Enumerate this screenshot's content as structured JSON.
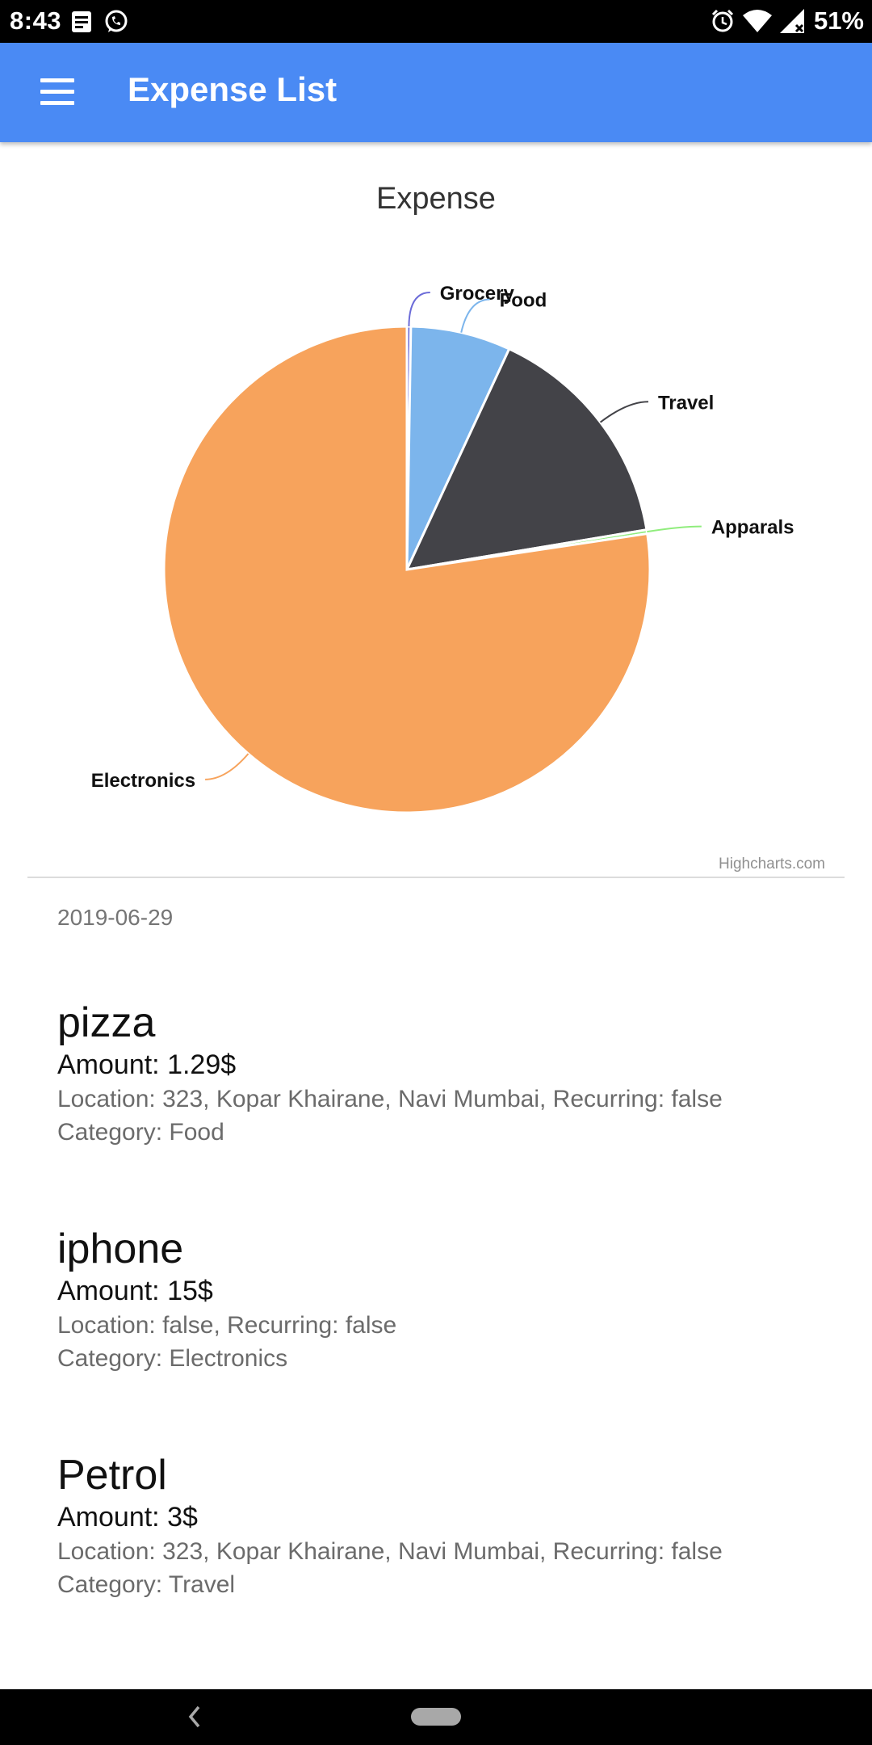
{
  "status_bar": {
    "time": "8:43",
    "battery": "51%",
    "icons": [
      "notes-icon",
      "whatsapp-icon",
      "alarm-icon",
      "wifi-icon",
      "signal-icon"
    ]
  },
  "app_bar": {
    "title": "Expense List",
    "menu_icon": "hamburger-menu-icon",
    "color": "#4a8af4"
  },
  "chart_data": {
    "type": "pie",
    "title": "Expense",
    "credits": "Highcharts.com",
    "series": [
      {
        "name": "Grocery",
        "value": 0.05,
        "color": "#6b6bd8"
      },
      {
        "name": "Food",
        "value": 1.29,
        "color": "#7cb5ec"
      },
      {
        "name": "Travel",
        "value": 3,
        "color": "#434348"
      },
      {
        "name": "Apparals",
        "value": 0.05,
        "color": "#90ed7d"
      },
      {
        "name": "Electronics",
        "value": 15,
        "color": "#f7a35c"
      }
    ]
  },
  "list": {
    "date": "2019-06-29",
    "items": [
      {
        "name": "pizza",
        "amount": "Amount: 1.29$",
        "location": "Location: 323, Kopar Khairane, Navi Mumbai, Recurring: false",
        "category": "Category: Food"
      },
      {
        "name": "iphone",
        "amount": "Amount: 15$",
        "location": "Location: false, Recurring: false",
        "category": "Category: Electronics"
      },
      {
        "name": "Petrol",
        "amount": "Amount: 3$",
        "location": "Location: 323, Kopar Khairane, Navi Mumbai, Recurring: false",
        "category": "Category: Travel"
      }
    ]
  },
  "nav_bar": {
    "back_icon": "back-chevron-icon",
    "home_icon": "home-pill-icon"
  }
}
